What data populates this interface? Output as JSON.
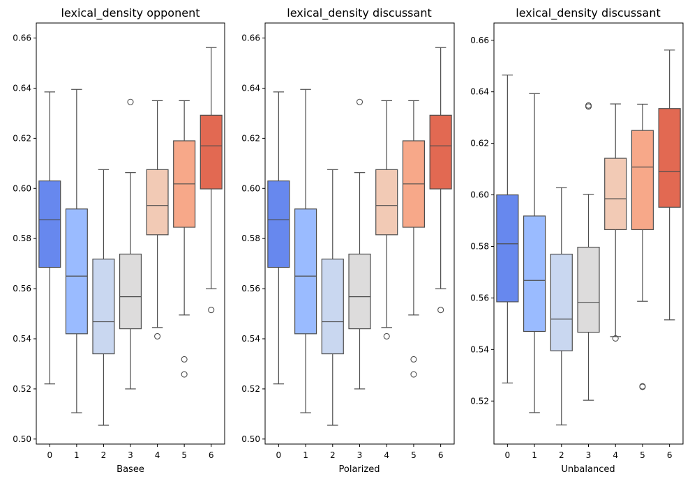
{
  "chart_data": [
    {
      "type": "box",
      "title": "lexical_density opponent",
      "xlabel": "Basee",
      "ylabel": "",
      "categories": [
        "0",
        "1",
        "2",
        "3",
        "4",
        "5",
        "6"
      ],
      "ylim": [
        0.498,
        0.666
      ],
      "yticks": [
        "0.50",
        "0.52",
        "0.54",
        "0.56",
        "0.58",
        "0.60",
        "0.62",
        "0.64",
        "0.66"
      ],
      "colors": [
        "#6788ee",
        "#9abbff",
        "#c9d7f0",
        "#dddcdc",
        "#f2cab5",
        "#f7a889",
        "#e26952"
      ],
      "boxes": [
        {
          "min": 0.522,
          "q1": 0.5685,
          "median": 0.5875,
          "q3": 0.603,
          "max": 0.6385,
          "outliers": []
        },
        {
          "min": 0.5105,
          "q1": 0.542,
          "median": 0.565,
          "q3": 0.5918,
          "max": 0.6395,
          "outliers": []
        },
        {
          "min": 0.5055,
          "q1": 0.534,
          "median": 0.5468,
          "q3": 0.5718,
          "max": 0.6075,
          "outliers": []
        },
        {
          "min": 0.52,
          "q1": 0.544,
          "median": 0.5568,
          "q3": 0.5738,
          "max": 0.6063,
          "outliers": [
            0.6345
          ]
        },
        {
          "min": 0.5445,
          "q1": 0.5815,
          "median": 0.5932,
          "q3": 0.6075,
          "max": 0.635,
          "outliers": [
            0.541
          ]
        },
        {
          "min": 0.5495,
          "q1": 0.5845,
          "median": 0.6018,
          "q3": 0.619,
          "max": 0.635,
          "outliers": [
            0.5318,
            0.5258
          ]
        },
        {
          "min": 0.56,
          "q1": 0.5998,
          "median": 0.617,
          "q3": 0.6292,
          "max": 0.6562,
          "outliers": [
            0.5515
          ]
        }
      ]
    },
    {
      "type": "box",
      "title": "lexical_density discussant",
      "xlabel": "Polarized",
      "ylabel": "",
      "categories": [
        "0",
        "1",
        "2",
        "3",
        "4",
        "5",
        "6"
      ],
      "ylim": [
        0.498,
        0.666
      ],
      "yticks": [
        "0.50",
        "0.52",
        "0.54",
        "0.56",
        "0.58",
        "0.60",
        "0.62",
        "0.64",
        "0.66"
      ],
      "colors": [
        "#6788ee",
        "#9abbff",
        "#c9d7f0",
        "#dddcdc",
        "#f2cab5",
        "#f7a889",
        "#e26952"
      ],
      "boxes": [
        {
          "min": 0.522,
          "q1": 0.5685,
          "median": 0.5875,
          "q3": 0.603,
          "max": 0.6385,
          "outliers": []
        },
        {
          "min": 0.5105,
          "q1": 0.542,
          "median": 0.565,
          "q3": 0.5918,
          "max": 0.6395,
          "outliers": []
        },
        {
          "min": 0.5055,
          "q1": 0.534,
          "median": 0.5468,
          "q3": 0.5718,
          "max": 0.6075,
          "outliers": []
        },
        {
          "min": 0.52,
          "q1": 0.544,
          "median": 0.5568,
          "q3": 0.5738,
          "max": 0.6063,
          "outliers": [
            0.6345
          ]
        },
        {
          "min": 0.5445,
          "q1": 0.5815,
          "median": 0.5932,
          "q3": 0.6075,
          "max": 0.635,
          "outliers": [
            0.541
          ]
        },
        {
          "min": 0.5495,
          "q1": 0.5845,
          "median": 0.6018,
          "q3": 0.619,
          "max": 0.635,
          "outliers": [
            0.5318,
            0.5258
          ]
        },
        {
          "min": 0.56,
          "q1": 0.5998,
          "median": 0.617,
          "q3": 0.6292,
          "max": 0.6562,
          "outliers": [
            0.5515
          ]
        }
      ]
    },
    {
      "type": "box",
      "title": "lexical_density discussant",
      "xlabel": "Unbalanced",
      "ylabel": "",
      "categories": [
        "0",
        "1",
        "2",
        "3",
        "4",
        "5",
        "6"
      ],
      "ylim": [
        0.5033,
        0.6667
      ],
      "yticks": [
        "0.52",
        "0.54",
        "0.56",
        "0.58",
        "0.60",
        "0.62",
        "0.64",
        "0.66"
      ],
      "colors": [
        "#6788ee",
        "#9abbff",
        "#c9d7f0",
        "#dddcdc",
        "#f2cab5",
        "#f7a889",
        "#e26952"
      ],
      "boxes": [
        {
          "min": 0.527,
          "q1": 0.5585,
          "median": 0.581,
          "q3": 0.6,
          "max": 0.6465,
          "outliers": []
        },
        {
          "min": 0.5155,
          "q1": 0.547,
          "median": 0.5668,
          "q3": 0.5918,
          "max": 0.6393,
          "outliers": []
        },
        {
          "min": 0.5107,
          "q1": 0.5395,
          "median": 0.5518,
          "q3": 0.577,
          "max": 0.6028,
          "outliers": []
        },
        {
          "min": 0.5203,
          "q1": 0.5467,
          "median": 0.5583,
          "q3": 0.5797,
          "max": 0.6002,
          "outliers": [
            0.6343,
            0.6347
          ]
        },
        {
          "min": 0.545,
          "q1": 0.5865,
          "median": 0.5985,
          "q3": 0.6142,
          "max": 0.6353,
          "outliers": [
            0.5443
          ]
        },
        {
          "min": 0.5587,
          "q1": 0.5865,
          "median": 0.6108,
          "q3": 0.625,
          "max": 0.6352,
          "outliers": [
            0.5255,
            0.5257
          ]
        },
        {
          "min": 0.5515,
          "q1": 0.5952,
          "median": 0.609,
          "q3": 0.6335,
          "max": 0.6562,
          "outliers": []
        }
      ]
    }
  ]
}
